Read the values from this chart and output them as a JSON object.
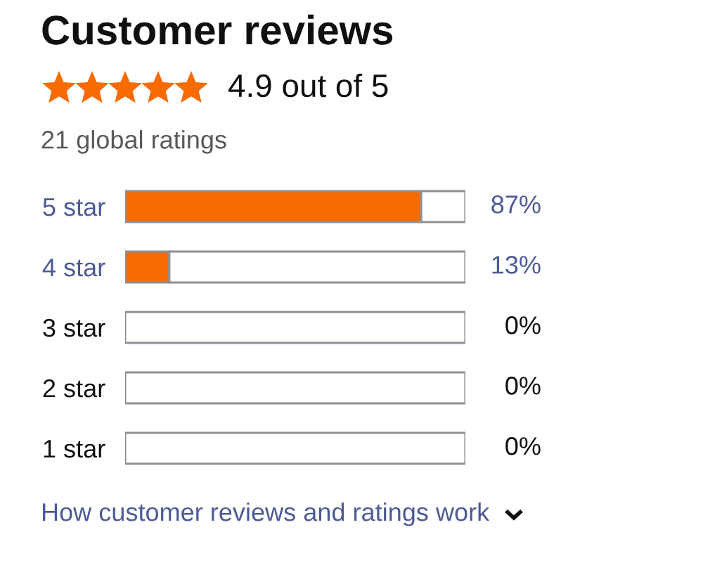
{
  "chart_data": {
    "type": "bar",
    "orientation": "horizontal",
    "stacked": true,
    "title": "Customer reviews",
    "subtitle": "4.9 out of 5",
    "annotations": [
      "21 global ratings",
      "How customer reviews and ratings work"
    ],
    "categories": [
      "5 star",
      "4 star",
      "3 star",
      "2 star",
      "1 star"
    ],
    "series": [
      {
        "color": "#f76b00",
        "values": [
          87,
          13,
          0,
          0,
          0
        ],
        "value_labels": [
          "87%",
          "13%",
          "0%",
          "0%",
          "0%"
        ]
      },
      {
        "color": "#ffffff",
        "values": [
          13,
          87,
          100,
          100,
          100
        ]
      }
    ],
    "xlim": [
      0,
      100
    ],
    "tick_labels": "y"
  }
}
